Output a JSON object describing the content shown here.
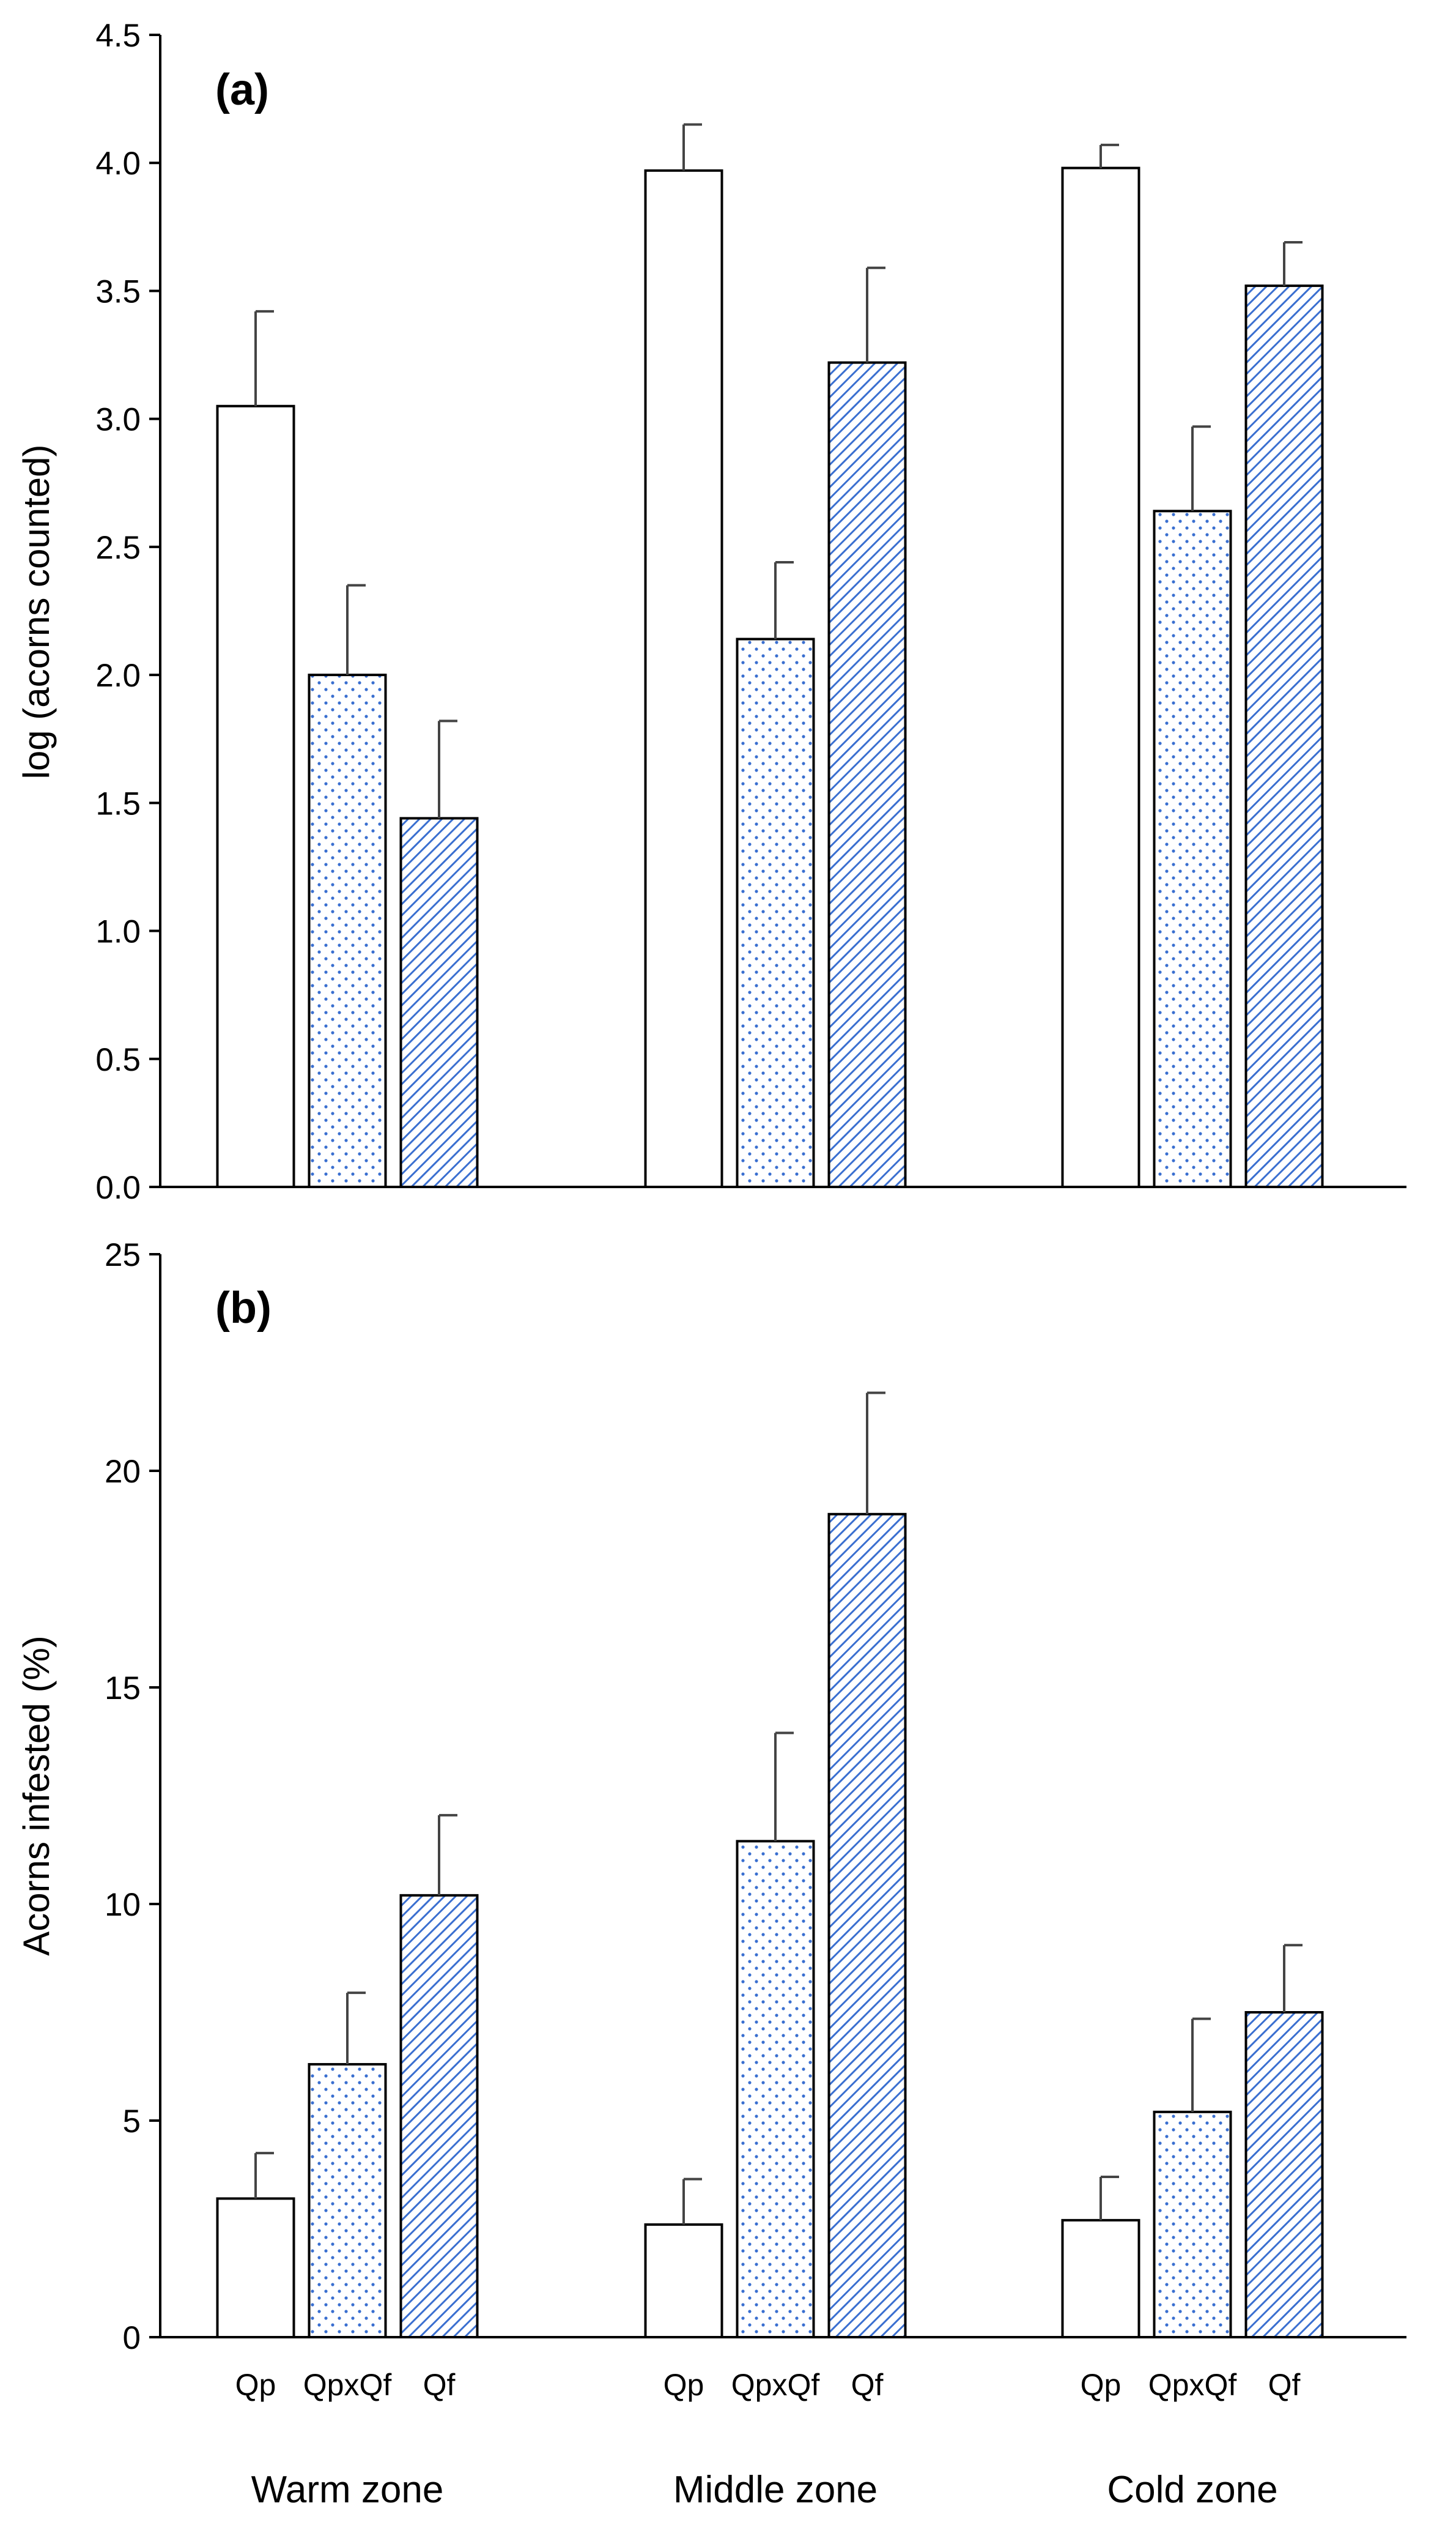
{
  "patterns": {
    "Qp": "none",
    "QpxQf": "dotted",
    "Qf": "hatched"
  },
  "colors": {
    "bar_stroke": "#000000",
    "pattern_blue": "#3a6fd0",
    "error_bar": "#444444",
    "axis": "#000000",
    "background": "#ffffff"
  },
  "chart_data": [
    {
      "type": "bar",
      "panel_label": "(a)",
      "ylabel": "log (acorns counted)",
      "xlabel": "",
      "ylim": [
        0,
        4.5
      ],
      "yticks": [
        "0.0",
        "0.5",
        "1.0",
        "1.5",
        "2.0",
        "2.5",
        "3.0",
        "3.5",
        "4.0",
        "4.5"
      ],
      "ytick_values": [
        0,
        0.5,
        1.0,
        1.5,
        2.0,
        2.5,
        3.0,
        3.5,
        4.0,
        4.5
      ],
      "grid": false,
      "categories": [
        "Warm zone",
        "Middle zone",
        "Cold zone"
      ],
      "series": [
        {
          "name": "Qp",
          "values": [
            3.05,
            3.97,
            3.98
          ],
          "errors": [
            0.37,
            0.18,
            0.09
          ]
        },
        {
          "name": "QpxQf",
          "values": [
            2.0,
            2.14,
            2.64
          ],
          "errors": [
            0.35,
            0.3,
            0.33
          ]
        },
        {
          "name": "Qf",
          "values": [
            1.44,
            3.22,
            3.52
          ],
          "errors": [
            0.38,
            0.37,
            0.17
          ]
        }
      ]
    },
    {
      "type": "bar",
      "panel_label": "(b)",
      "ylabel": "Acorns infested (%)",
      "xlabel": "",
      "ylim": [
        0,
        25
      ],
      "yticks": [
        "0",
        "5",
        "10",
        "15",
        "20",
        "25"
      ],
      "ytick_values": [
        0,
        5,
        10,
        15,
        20,
        25
      ],
      "grid": false,
      "categories": [
        "Warm zone",
        "Middle zone",
        "Cold zone"
      ],
      "bar_labels": [
        "Qp",
        "QpxQf",
        "Qf"
      ],
      "series": [
        {
          "name": "Qp",
          "values": [
            3.2,
            2.6,
            2.7
          ],
          "errors": [
            1.05,
            1.05,
            1.0
          ]
        },
        {
          "name": "QpxQf",
          "values": [
            6.3,
            11.45,
            5.2
          ],
          "errors": [
            1.65,
            2.5,
            2.15
          ]
        },
        {
          "name": "Qf",
          "values": [
            10.2,
            19.0,
            7.5
          ],
          "errors": [
            1.85,
            2.8,
            1.55
          ]
        }
      ]
    }
  ]
}
